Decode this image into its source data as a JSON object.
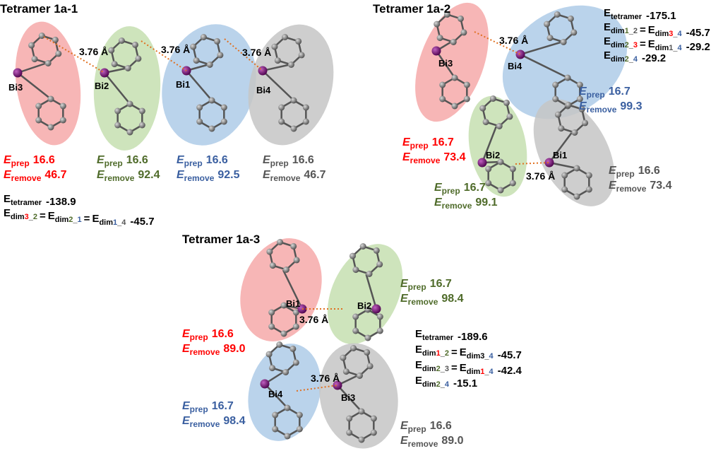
{
  "symbols": {
    "E": "E",
    "prep": "prep",
    "remove": "remove",
    "eq": "="
  },
  "panels": [
    {
      "title": "Tetramer 1a-1",
      "groups": [
        {
          "atom": "Bi3",
          "fill": "#f6a9a9",
          "text_color": "#ff0000",
          "prep": "16.6",
          "remove": "46.7"
        },
        {
          "atom": "Bi2",
          "fill": "#c6dfb0",
          "text_color": "#4f6b2a",
          "prep": "16.6",
          "remove": "92.4"
        },
        {
          "atom": "Bi1",
          "fill": "#aecbe8",
          "text_color": "#3a5fa0",
          "prep": "16.6",
          "remove": "92.5"
        },
        {
          "atom": "Bi4",
          "fill": "#c6c6c6",
          "text_color": "#555555",
          "prep": "16.6",
          "remove": "46.7"
        }
      ],
      "distances": [
        "3.76 Å",
        "3.76 Å",
        "3.76 Å"
      ],
      "summary": [
        {
          "terms": [
            [
              {
                "t": "tetramer"
              }
            ]
          ],
          "value": "-138.9"
        },
        {
          "terms": [
            [
              {
                "t": "dim"
              },
              {
                "t": "3",
                "color": "#ff0000"
              },
              {
                "t": "_"
              },
              {
                "t": "2",
                "color": "#4f6b2a"
              }
            ],
            [
              {
                "t": "dim"
              },
              {
                "t": "2",
                "color": "#4f6b2a"
              },
              {
                "t": "_"
              },
              {
                "t": "1",
                "color": "#3a5fa0"
              }
            ],
            [
              {
                "t": "dim"
              },
              {
                "t": "1",
                "color": "#3a5fa0"
              },
              {
                "t": "_"
              },
              {
                "t": "4",
                "color": "#555555"
              }
            ]
          ],
          "value": "-45.7"
        }
      ]
    },
    {
      "title": "Tetramer 1a-2",
      "groups": [
        {
          "atom": "Bi3",
          "fill": "#f6a9a9",
          "text_color": "#ff0000",
          "prep": "16.7",
          "remove": "73.4"
        },
        {
          "atom": "Bi4",
          "fill": "#aecbe8",
          "text_color": "#3a5fa0",
          "prep": "16.7",
          "remove": "99.3"
        },
        {
          "atom": "Bi2",
          "fill": "#c6dfb0",
          "text_color": "#4f6b2a",
          "prep": "16.7",
          "remove": "99.1"
        },
        {
          "atom": "Bi1",
          "fill": "#c6c6c6",
          "text_color": "#555555",
          "prep": "16.6",
          "remove": "73.4"
        }
      ],
      "distances": [
        "3.76 Å",
        "3.76 Å"
      ],
      "summary": [
        {
          "terms": [
            [
              {
                "t": "tetramer"
              }
            ]
          ],
          "value": "-175.1"
        },
        {
          "terms": [
            [
              {
                "t": "dim"
              },
              {
                "t": "1",
                "color": "#4f6b2a"
              },
              {
                "t": "_"
              },
              {
                "t": "2",
                "color": "#555555"
              }
            ],
            [
              {
                "t": "dim"
              },
              {
                "t": "3",
                "color": "#ff0000"
              },
              {
                "t": "_"
              },
              {
                "t": "4",
                "color": "#3a5fa0"
              }
            ]
          ],
          "value": "-45.7"
        },
        {
          "terms": [
            [
              {
                "t": "dim"
              },
              {
                "t": "2",
                "color": "#4f6b2a"
              },
              {
                "t": "_"
              },
              {
                "t": "3",
                "color": "#ff0000"
              }
            ],
            [
              {
                "t": "dim"
              },
              {
                "t": "1",
                "color": "#555555"
              },
              {
                "t": "_"
              },
              {
                "t": "4",
                "color": "#3a5fa0"
              }
            ]
          ],
          "value": "-29.2"
        },
        {
          "terms": [
            [
              {
                "t": "dim"
              },
              {
                "t": "2",
                "color": "#4f6b2a"
              },
              {
                "t": "_"
              },
              {
                "t": "4",
                "color": "#3a5fa0"
              }
            ]
          ],
          "value": "-29.2"
        }
      ]
    },
    {
      "title": "Tetramer 1a-3",
      "groups": [
        {
          "atom": "Bi1",
          "fill": "#f6a9a9",
          "text_color": "#ff0000",
          "prep": "16.6",
          "remove": "89.0"
        },
        {
          "atom": "Bi2",
          "fill": "#c6dfb0",
          "text_color": "#4f6b2a",
          "prep": "16.7",
          "remove": "98.4"
        },
        {
          "atom": "Bi4",
          "fill": "#aecbe8",
          "text_color": "#3a5fa0",
          "prep": "16.7",
          "remove": "98.4"
        },
        {
          "atom": "Bi3",
          "fill": "#c6c6c6",
          "text_color": "#555555",
          "prep": "16.6",
          "remove": "89.0"
        }
      ],
      "distances": [
        "3.76 Å",
        "3.76 Å"
      ],
      "summary": [
        {
          "terms": [
            [
              {
                "t": "tetramer"
              }
            ]
          ],
          "value": "-189.6"
        },
        {
          "terms": [
            [
              {
                "t": "dim"
              },
              {
                "t": "1",
                "color": "#ff0000"
              },
              {
                "t": "_"
              },
              {
                "t": "2",
                "color": "#4f6b2a"
              }
            ],
            [
              {
                "t": "dim"
              },
              {
                "t": "3"
              },
              {
                "t": "_"
              },
              {
                "t": "4",
                "color": "#3a5fa0"
              }
            ]
          ],
          "value": "-45.7"
        },
        {
          "terms": [
            [
              {
                "t": "dim"
              },
              {
                "t": "2",
                "color": "#4f6b2a"
              },
              {
                "t": "_"
              },
              {
                "t": "3",
                "color": "#555555"
              }
            ],
            [
              {
                "t": "dim"
              },
              {
                "t": "1",
                "color": "#ff0000"
              },
              {
                "t": "_"
              },
              {
                "t": "4",
                "color": "#3a5fa0"
              }
            ]
          ],
          "value": "-42.4"
        },
        {
          "terms": [
            [
              {
                "t": "dim"
              },
              {
                "t": "2",
                "color": "#4f6b2a"
              },
              {
                "t": "_"
              },
              {
                "t": "4",
                "color": "#3a5fa0"
              }
            ]
          ],
          "value": "-15.1"
        }
      ]
    }
  ]
}
